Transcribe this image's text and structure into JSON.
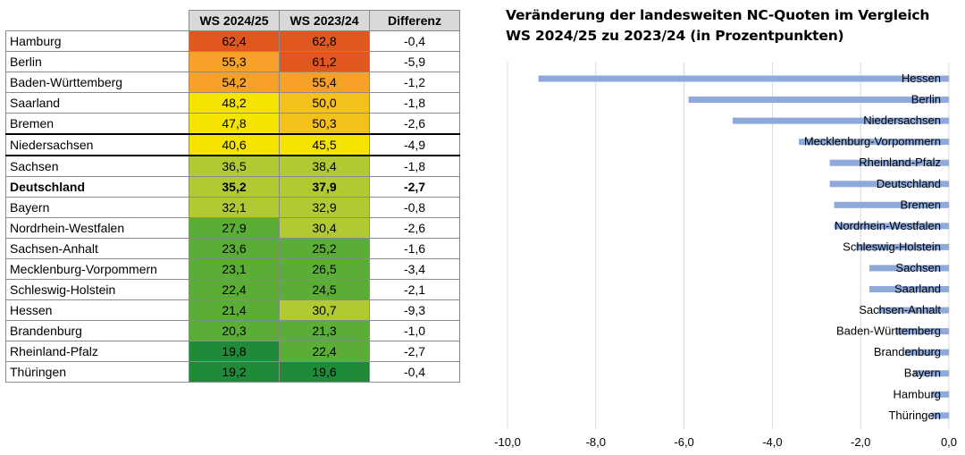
{
  "table": {
    "headers": [
      "",
      "WS 2024/25",
      "WS 2023/24",
      "Differenz"
    ],
    "rows": [
      {
        "name": "Hamburg",
        "ws2425": "62,4",
        "ws2324": "62,8",
        "diff": "-0,4",
        "c1": "#e0571f",
        "c2": "#e0571f"
      },
      {
        "name": "Berlin",
        "ws2425": "55,3",
        "ws2324": "61,2",
        "diff": "-5,9",
        "c1": "#f7a128",
        "c2": "#e0581f"
      },
      {
        "name": "Baden-Württemberg",
        "ws2425": "54,2",
        "ws2324": "55,4",
        "diff": "-1,2",
        "c1": "#f7a128",
        "c2": "#f7a128"
      },
      {
        "name": "Saarland",
        "ws2425": "48,2",
        "ws2324": "50,0",
        "diff": "-1,8",
        "c1": "#f5e400",
        "c2": "#f4c01c"
      },
      {
        "name": "Bremen",
        "ws2425": "47,8",
        "ws2324": "50,3",
        "diff": "-2,6",
        "c1": "#f5e400",
        "c2": "#f4c01c"
      },
      {
        "name": "Niedersachsen",
        "ws2425": "40,6",
        "ws2324": "45,5",
        "diff": "-4,9",
        "c1": "#f5e400",
        "c2": "#f5e400"
      },
      {
        "name": "Sachsen",
        "ws2425": "36,5",
        "ws2324": "38,4",
        "diff": "-1,8",
        "c1": "#b1c933",
        "c2": "#b1c933"
      },
      {
        "name": "Deutschland",
        "ws2425": "35,2",
        "ws2324": "37,9",
        "diff": "-2,7",
        "c1": "#b1c933",
        "c2": "#b1c933",
        "bold": true
      },
      {
        "name": "Bayern",
        "ws2425": "32,1",
        "ws2324": "32,9",
        "diff": "-0,8",
        "c1": "#b1c933",
        "c2": "#b1c933"
      },
      {
        "name": "Nordrhein-Westfalen",
        "ws2425": "27,9",
        "ws2324": "30,4",
        "diff": "-2,6",
        "c1": "#5aae35",
        "c2": "#b1c933"
      },
      {
        "name": "Sachsen-Anhalt",
        "ws2425": "23,6",
        "ws2324": "25,2",
        "diff": "-1,6",
        "c1": "#5aae35",
        "c2": "#5aae35"
      },
      {
        "name": "Mecklenburg-Vorpommern",
        "ws2425": "23,1",
        "ws2324": "26,5",
        "diff": "-3,4",
        "c1": "#5aae35",
        "c2": "#5aae35"
      },
      {
        "name": "Schleswig-Holstein",
        "ws2425": "22,4",
        "ws2324": "24,5",
        "diff": "-2,1",
        "c1": "#5aae35",
        "c2": "#5aae35"
      },
      {
        "name": "Hessen",
        "ws2425": "21,4",
        "ws2324": "30,7",
        "diff": "-9,3",
        "c1": "#5aae35",
        "c2": "#b1c933"
      },
      {
        "name": "Brandenburg",
        "ws2425": "20,3",
        "ws2324": "21,3",
        "diff": "-1,0",
        "c1": "#5aae35",
        "c2": "#5aae35"
      },
      {
        "name": "Rheinland-Pfalz",
        "ws2425": "19,8",
        "ws2324": "22,4",
        "diff": "-2,7",
        "c1": "#1f8b38",
        "c2": "#5aae35"
      },
      {
        "name": "Thüringen",
        "ws2425": "19,2",
        "ws2324": "19,6",
        "diff": "-0,4",
        "c1": "#1f8b38",
        "c2": "#1f8b38"
      }
    ]
  },
  "chart_data": {
    "type": "bar",
    "orientation": "horizontal",
    "title_lines": [
      "Veränderung der landesweiten NC-Quoten im Vergleich",
      "WS 2024/25 zu 2023/24 (in Prozentpunkten)"
    ],
    "categories": [
      "Hessen",
      "Berlin",
      "Niedersachsen",
      "Mecklenburg-Vorpommern",
      "Rheinland-Pfalz",
      "Deutschland",
      "Bremen",
      "Nordrhein-Westfalen",
      "Schleswig-Holstein",
      "Sachsen",
      "Saarland",
      "Sachsen-Anhalt",
      "Baden-Württemberg",
      "Brandenburg",
      "Bayern",
      "Hamburg",
      "Thüringen"
    ],
    "values": [
      -9.3,
      -5.9,
      -4.9,
      -3.4,
      -2.7,
      -2.7,
      -2.6,
      -2.6,
      -2.1,
      -1.8,
      -1.8,
      -1.6,
      -1.2,
      -1.0,
      -0.8,
      -0.4,
      -0.4
    ],
    "xlim": [
      -10,
      0
    ],
    "xticks": [
      -10,
      -8,
      -6,
      -4,
      -2,
      0
    ],
    "xtick_labels": [
      "-10,0",
      "-8,0",
      "-6,0",
      "-4,0",
      "-2,0",
      "0,0"
    ],
    "bar_color": "#8eaadb",
    "grid": true,
    "legend": "none"
  }
}
